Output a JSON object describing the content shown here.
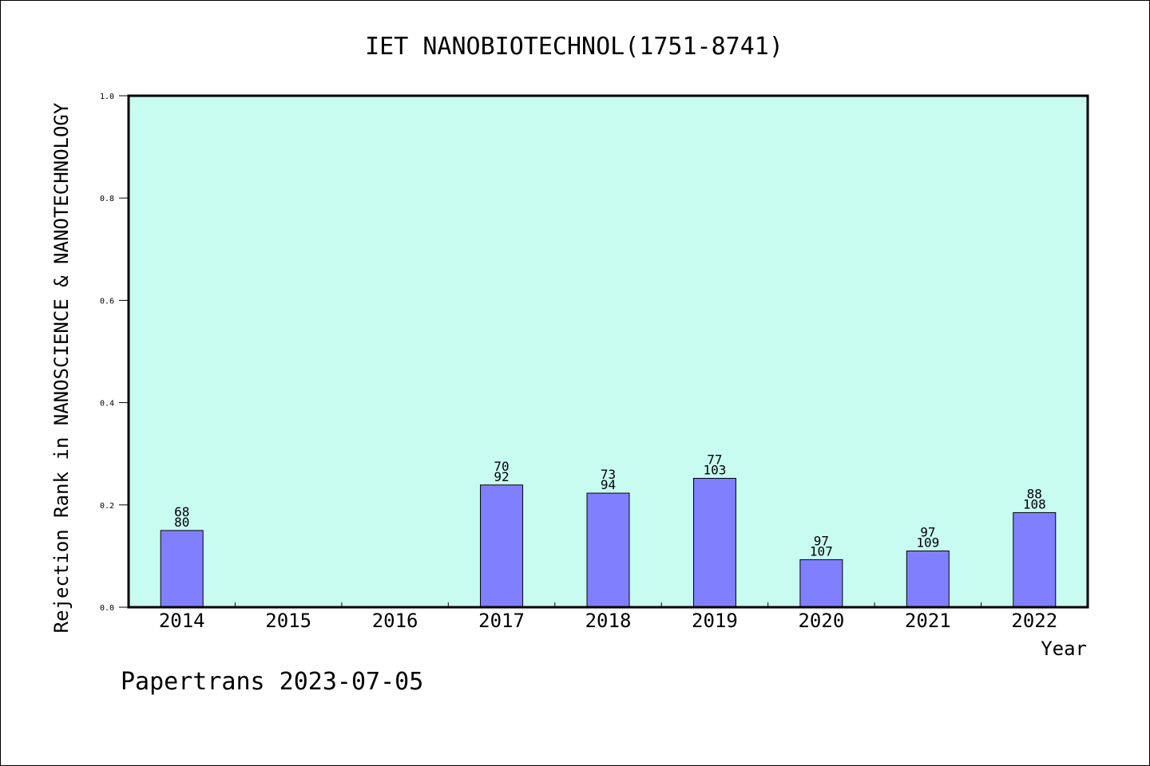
{
  "chart_data": {
    "type": "bar",
    "title": "IET NANOBIOTECHNOL(1751-8741)",
    "ylabel": "Rejection Rank in NANOSCIENCE & NANOTECHNOLOGY",
    "xlabel": "Year",
    "ylim": [
      0,
      1.0
    ],
    "yticks": [
      "0.0",
      "0.2",
      "0.4",
      "0.6",
      "0.8",
      "1.0"
    ],
    "ytick_values": [
      0,
      0.2,
      0.4,
      0.6,
      0.8,
      1.0
    ],
    "categories": [
      "2014",
      "2015",
      "2016",
      "2017",
      "2018",
      "2019",
      "2020",
      "2021",
      "2022"
    ],
    "values": [
      0.15,
      null,
      null,
      0.239,
      0.223,
      0.252,
      0.093,
      0.11,
      0.185
    ],
    "rank": [
      "68",
      "",
      "",
      "70",
      "73",
      "77",
      "97",
      "97",
      "88"
    ],
    "total": [
      "80",
      "",
      "",
      "92",
      "94",
      "103",
      "107",
      "109",
      "108"
    ],
    "bar_color": "#8080ff",
    "plot_background": "#c8fcf0",
    "grid": false
  },
  "footer": "Papertrans 2023-07-05"
}
